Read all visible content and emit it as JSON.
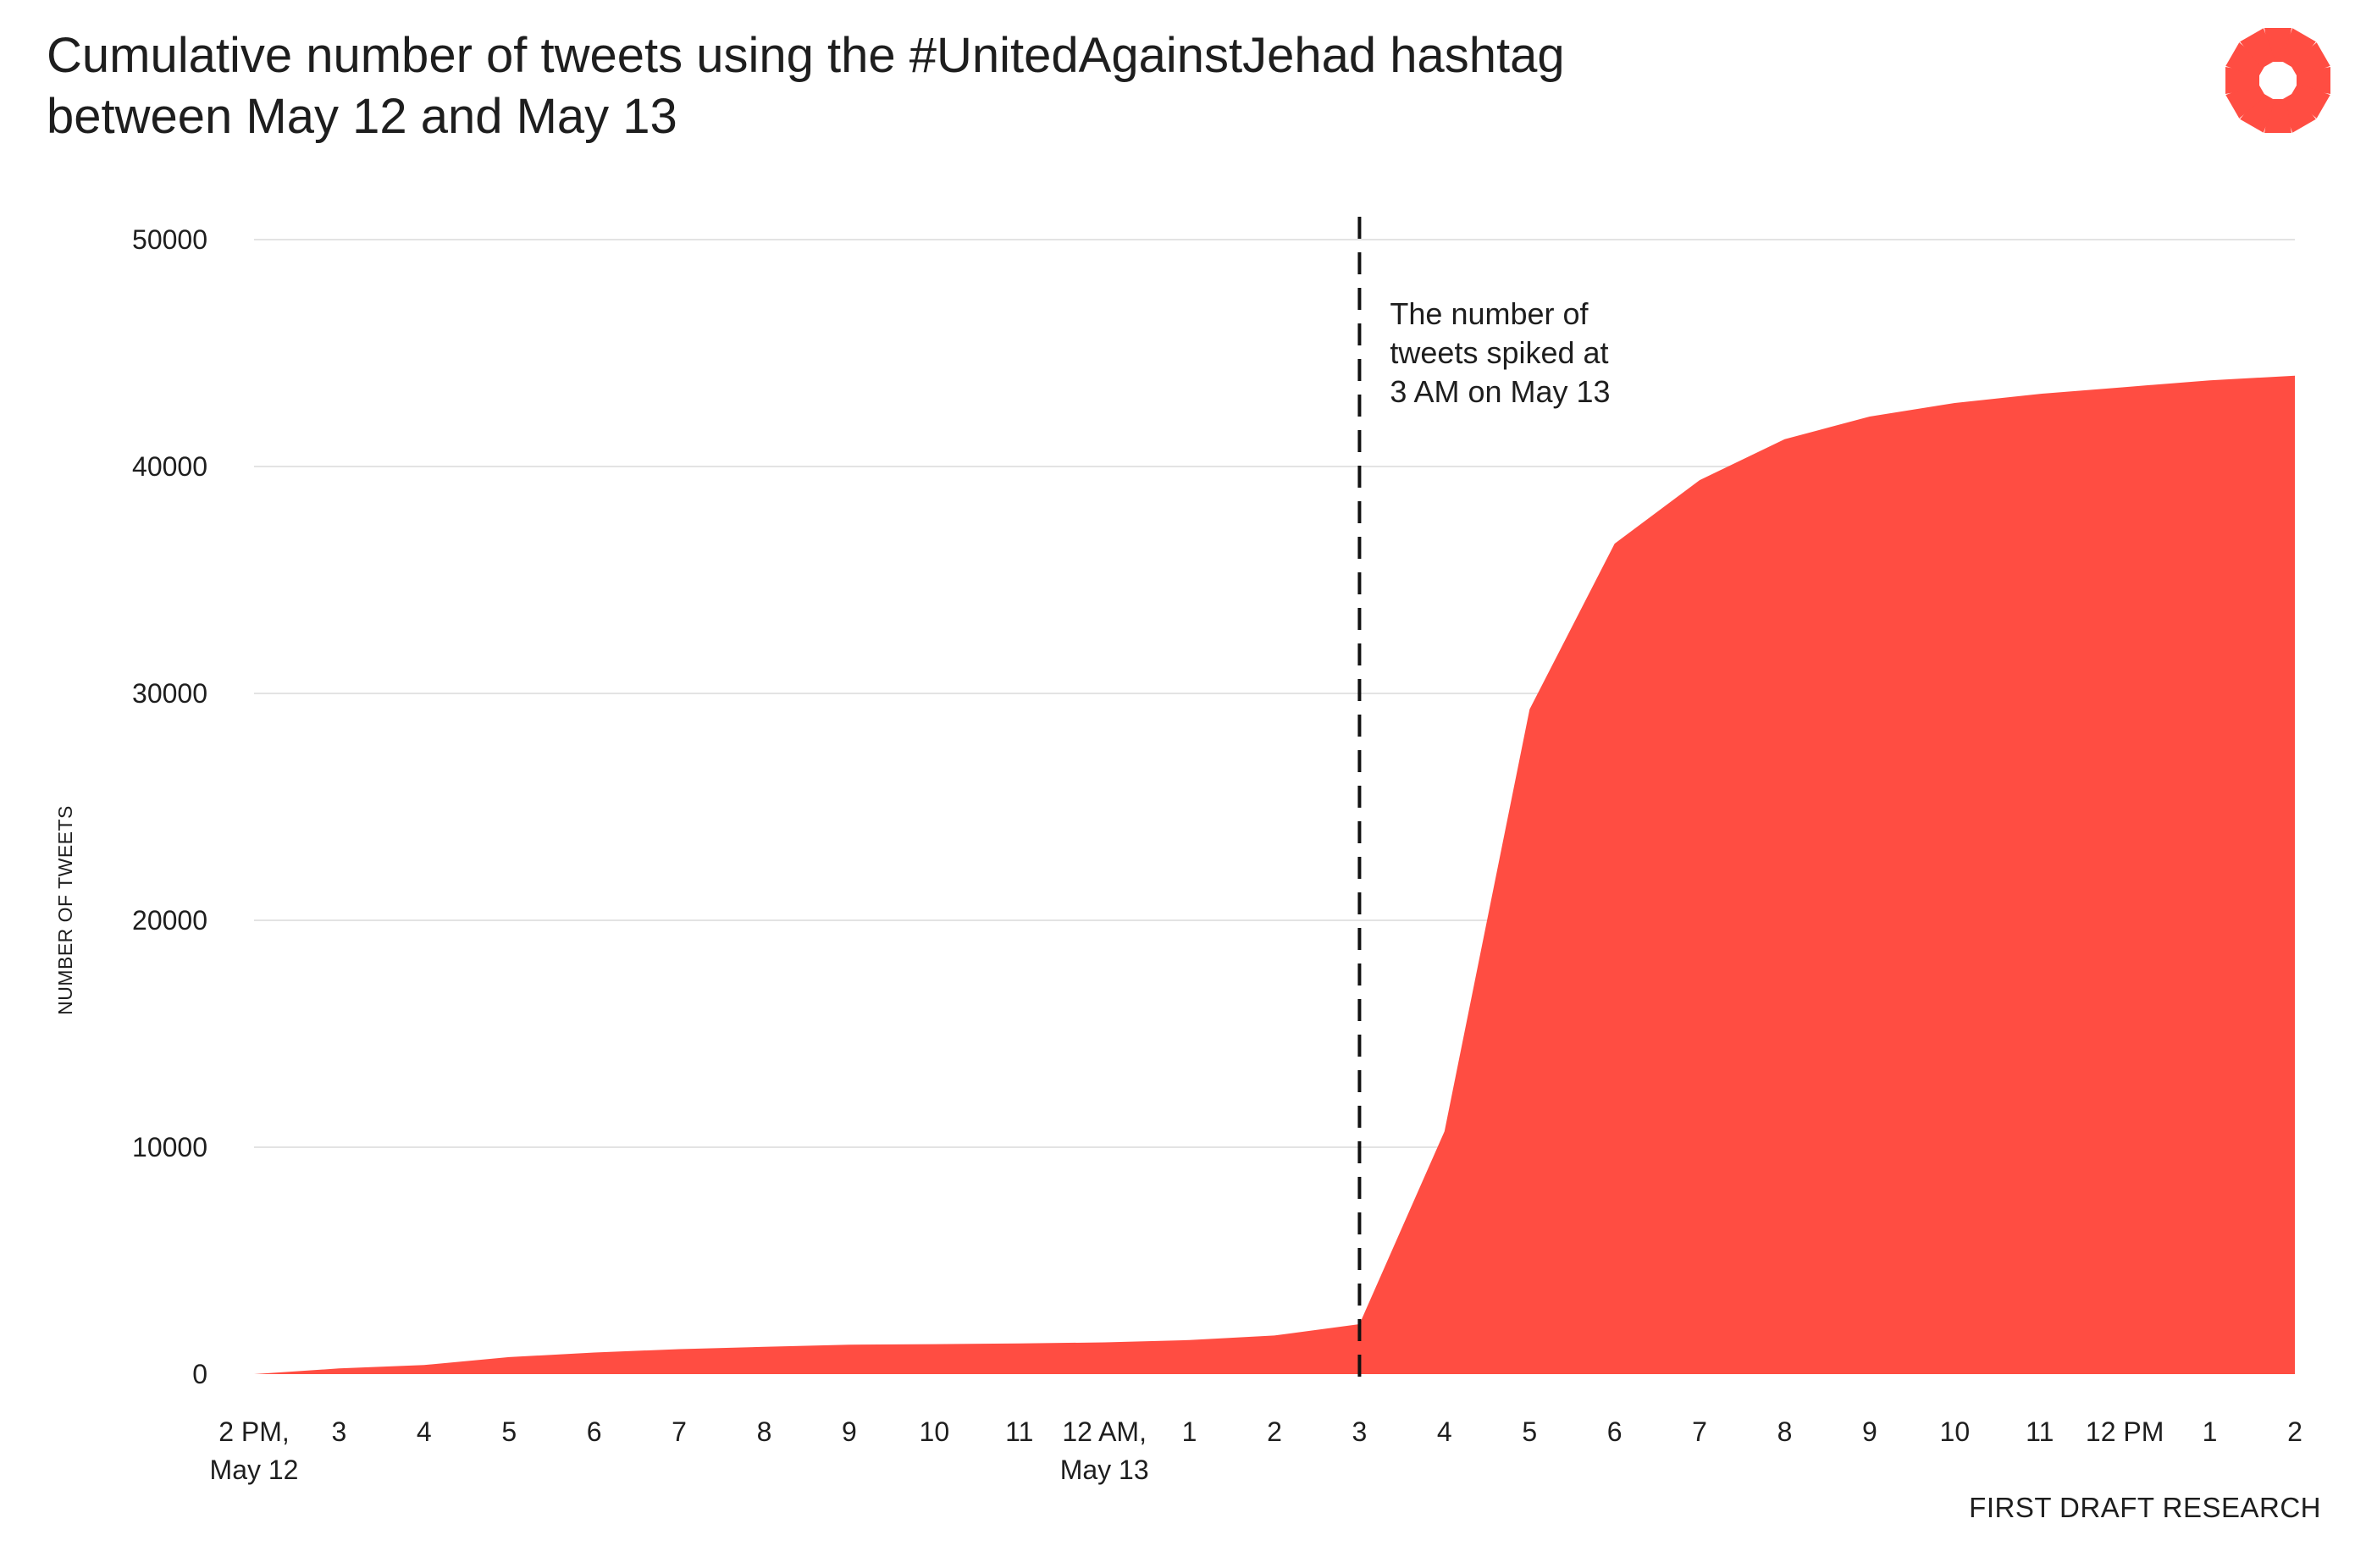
{
  "header": {
    "title_line1": "Cumulative number of tweets using the #UnitedAgainstJehad hashtag",
    "title_line2": "between May 12 and May 13"
  },
  "footer": {
    "source": "FIRST DRAFT RESEARCH"
  },
  "logo": {
    "icon": "first-draft-starburst-icon",
    "color": "#ff4d42"
  },
  "chart_data": {
    "type": "area",
    "title": "Cumulative number of tweets using the #UnitedAgainstJehad hashtag between May 12 and May 13",
    "ylabel": "NUMBER OF TWEETS",
    "xlabel": "",
    "ylim": [
      0,
      50000
    ],
    "yticks": [
      0,
      10000,
      20000,
      30000,
      40000,
      50000
    ],
    "grid": true,
    "fill_color": "#ff4d42",
    "categories": [
      {
        "line1": "2 PM,",
        "line2": "May 12"
      },
      {
        "line1": "3",
        "line2": ""
      },
      {
        "line1": "4",
        "line2": ""
      },
      {
        "line1": "5",
        "line2": ""
      },
      {
        "line1": "6",
        "line2": ""
      },
      {
        "line1": "7",
        "line2": ""
      },
      {
        "line1": "8",
        "line2": ""
      },
      {
        "line1": "9",
        "line2": ""
      },
      {
        "line1": "10",
        "line2": ""
      },
      {
        "line1": "11",
        "line2": ""
      },
      {
        "line1": "12 AM,",
        "line2": "May 13"
      },
      {
        "line1": "1",
        "line2": ""
      },
      {
        "line1": "2",
        "line2": ""
      },
      {
        "line1": "3",
        "line2": ""
      },
      {
        "line1": "4",
        "line2": ""
      },
      {
        "line1": "5",
        "line2": ""
      },
      {
        "line1": "6",
        "line2": ""
      },
      {
        "line1": "7",
        "line2": ""
      },
      {
        "line1": "8",
        "line2": ""
      },
      {
        "line1": "9",
        "line2": ""
      },
      {
        "line1": "10",
        "line2": ""
      },
      {
        "line1": "11",
        "line2": ""
      },
      {
        "line1": "12 PM",
        "line2": ""
      },
      {
        "line1": "1",
        "line2": ""
      },
      {
        "line1": "2",
        "line2": ""
      }
    ],
    "values": [
      0,
      250,
      400,
      750,
      950,
      1100,
      1200,
      1300,
      1320,
      1350,
      1400,
      1500,
      1700,
      2200,
      10700,
      29300,
      36600,
      39400,
      41200,
      42200,
      42800,
      43200,
      43500,
      43800,
      44000
    ],
    "annotation": {
      "at_category_index": 13,
      "lines": [
        "The number of",
        "tweets spiked at",
        "3 AM  on May 13"
      ],
      "style": "dashed-vertical-line"
    }
  }
}
